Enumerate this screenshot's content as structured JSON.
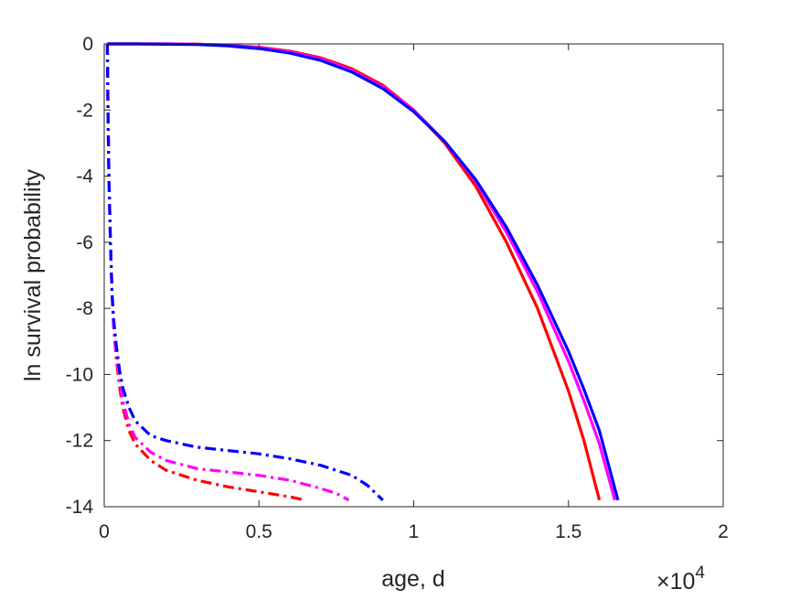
{
  "chart_data": {
    "type": "line",
    "title": "",
    "xlabel": "age, d",
    "ylabel": "ln survival probability",
    "x_multiplier": {
      "times": "×",
      "base": "10",
      "exponent": "4"
    },
    "xlim": [
      0,
      20000
    ],
    "ylim": [
      -14,
      0
    ],
    "x_ticks": [
      0,
      5000,
      10000,
      15000,
      20000
    ],
    "x_tick_labels": [
      "0",
      "0.5",
      "1",
      "1.5",
      "2"
    ],
    "y_ticks": [
      0,
      -2,
      -4,
      -6,
      -8,
      -10,
      -12,
      -14
    ],
    "y_tick_labels": [
      "0",
      "-2",
      "-4",
      "-6",
      "-8",
      "-10",
      "-12",
      "-14"
    ],
    "grid": false,
    "box": true,
    "series": [
      {
        "color": "#ff0000",
        "style": "solid",
        "x": [
          100,
          1000,
          2000,
          3000,
          4000,
          5000,
          6000,
          7000,
          8000,
          9000,
          10000,
          11000,
          12000,
          13000,
          14000,
          15000,
          15500,
          16000
        ],
        "y": [
          0,
          0,
          0,
          -0.01,
          -0.04,
          -0.1,
          -0.22,
          -0.42,
          -0.75,
          -1.25,
          -2.0,
          -3.0,
          -4.3,
          -6.0,
          -8.0,
          -10.5,
          -12.0,
          -13.8
        ]
      },
      {
        "color": "#ff00ff",
        "style": "solid",
        "x": [
          100,
          1000,
          2000,
          3000,
          4000,
          5000,
          6000,
          7000,
          8000,
          9000,
          10000,
          11000,
          12000,
          13000,
          14000,
          15000,
          15500,
          16000,
          16500
        ],
        "y": [
          0,
          0,
          0,
          -0.01,
          -0.04,
          -0.11,
          -0.24,
          -0.45,
          -0.8,
          -1.3,
          -2.0,
          -2.95,
          -4.15,
          -5.7,
          -7.5,
          -9.6,
          -10.8,
          -12.1,
          -13.8
        ]
      },
      {
        "color": "#0000ff",
        "style": "solid",
        "x": [
          100,
          1000,
          2000,
          3000,
          4000,
          5000,
          6000,
          7000,
          8000,
          9000,
          10000,
          11000,
          12000,
          13000,
          14000,
          15000,
          15500,
          16000,
          16600
        ],
        "y": [
          0,
          0,
          -0.01,
          -0.02,
          -0.06,
          -0.14,
          -0.28,
          -0.5,
          -0.85,
          -1.35,
          -2.05,
          -2.95,
          -4.1,
          -5.55,
          -7.3,
          -9.3,
          -10.45,
          -11.7,
          -13.8
        ]
      },
      {
        "color": "#ff0000",
        "style": "dashdot",
        "x": [
          100,
          120,
          150,
          200,
          250,
          300,
          400,
          500,
          600,
          800,
          1000,
          1500,
          2000,
          3000,
          4000,
          5000,
          6000,
          6500
        ],
        "y": [
          0,
          -2,
          -4,
          -6,
          -7.5,
          -8.5,
          -9.6,
          -10.4,
          -11,
          -11.7,
          -12.1,
          -12.6,
          -12.9,
          -13.2,
          -13.4,
          -13.55,
          -13.7,
          -13.8
        ]
      },
      {
        "color": "#ff00ff",
        "style": "dashdot",
        "x": [
          100,
          120,
          150,
          200,
          250,
          300,
          400,
          500,
          600,
          800,
          1000,
          1500,
          2000,
          3000,
          4000,
          5000,
          6000,
          7000,
          7500,
          7900
        ],
        "y": [
          0,
          -2,
          -4,
          -6,
          -7.5,
          -8.5,
          -9.5,
          -10.2,
          -10.8,
          -11.5,
          -11.9,
          -12.35,
          -12.6,
          -12.85,
          -12.95,
          -13.05,
          -13.2,
          -13.45,
          -13.6,
          -13.8
        ]
      },
      {
        "color": "#0000ff",
        "style": "dashdot",
        "x": [
          100,
          120,
          150,
          200,
          250,
          300,
          400,
          500,
          600,
          800,
          1000,
          1500,
          2000,
          3000,
          4000,
          5000,
          6000,
          7000,
          8000,
          8500,
          9000
        ],
        "y": [
          0,
          -2,
          -4,
          -6,
          -7.5,
          -8.3,
          -9.2,
          -9.9,
          -10.4,
          -11.0,
          -11.4,
          -11.85,
          -12.0,
          -12.2,
          -12.3,
          -12.4,
          -12.55,
          -12.75,
          -13.05,
          -13.35,
          -13.8
        ]
      }
    ]
  }
}
